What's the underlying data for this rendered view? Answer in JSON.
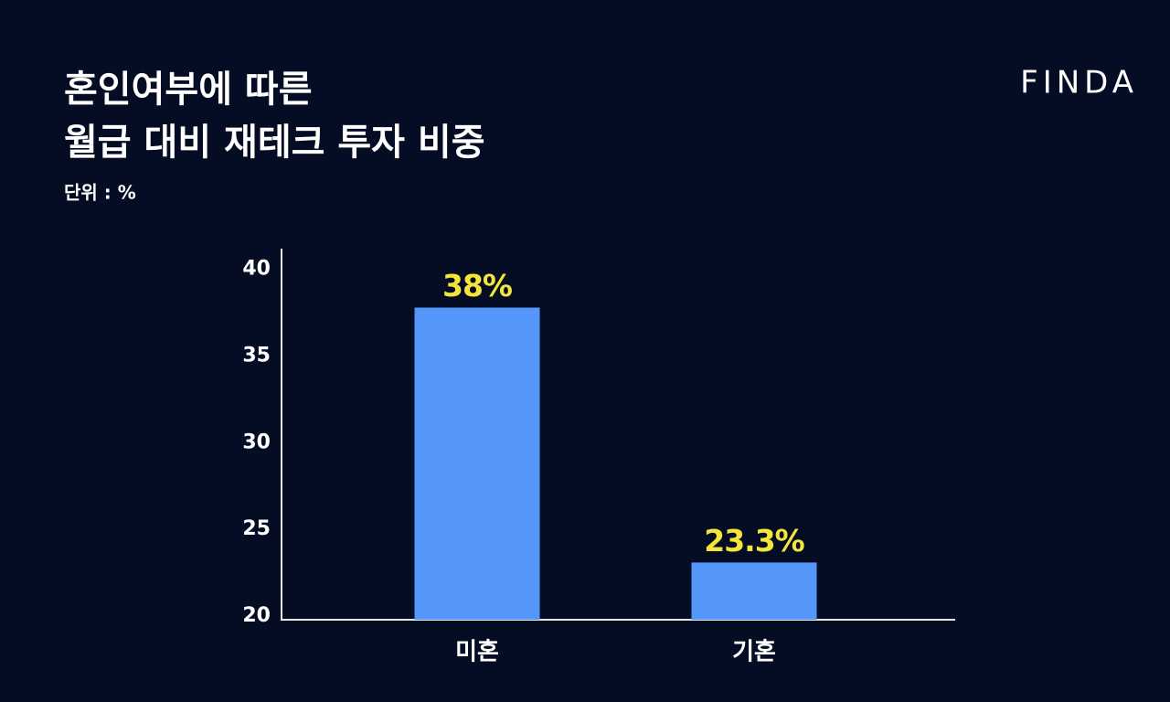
{
  "brand": "FINDA",
  "chart_data": {
    "type": "bar",
    "title": [
      "혼인여부에 따른",
      "월급 대비 재테크 투자 비중"
    ],
    "subtitle": "단위 : %",
    "categories": [
      "미혼",
      "기혼"
    ],
    "values": [
      38,
      23.3
    ],
    "value_labels": [
      "38%",
      "23.3%"
    ],
    "color": "#5596f9",
    "label_color": "#f4e53b",
    "ylim": [
      20,
      41.4
    ],
    "yticks": [
      20,
      25,
      30,
      35,
      40
    ],
    "grid": false
  }
}
